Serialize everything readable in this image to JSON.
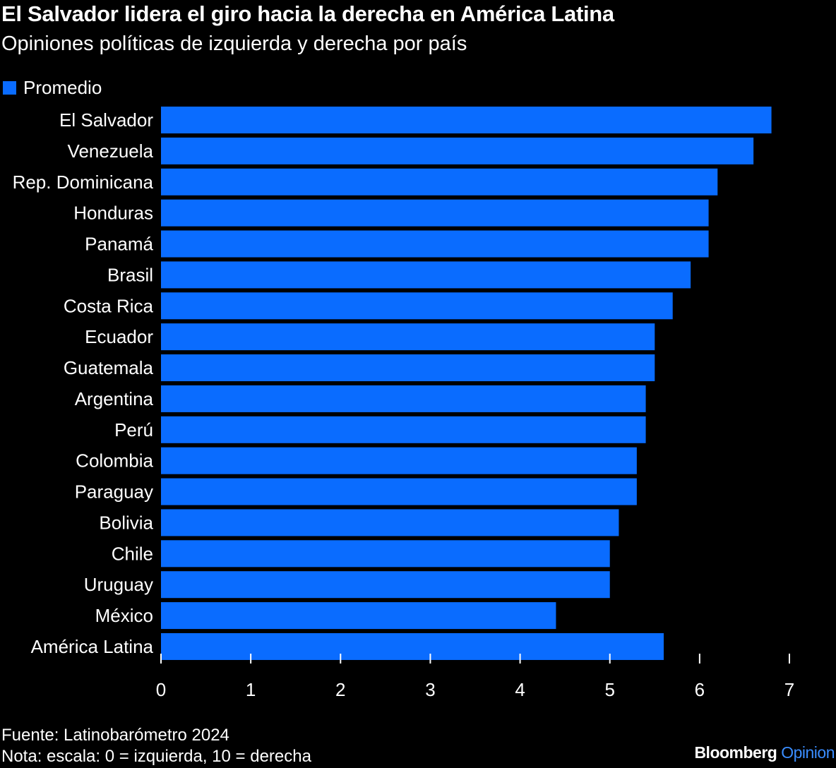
{
  "title": "El Salvador lidera el giro hacia la derecha en América Latina",
  "subtitle": "Opiniones políticas de izquierda y derecha por país",
  "footer": {
    "source": "Fuente: Latinobarómetro 2024",
    "note": "Nota: escala: 0 = izquierda, 10 = derecha",
    "logo_brand": "Bloomberg",
    "logo_section": "Opinion"
  },
  "colors": {
    "bar": "#0a6cff",
    "background": "#000000",
    "text": "#ffffff"
  },
  "chart_data": {
    "type": "bar",
    "orientation": "horizontal",
    "title": "El Salvador lidera el giro hacia la derecha en América Latina",
    "subtitle": "Opiniones políticas de izquierda y derecha por país",
    "legend": {
      "position": "top-left",
      "entries": [
        "Promedio"
      ]
    },
    "categories": [
      "El Salvador",
      "Venezuela",
      "Rep. Dominicana",
      "Honduras",
      "Panamá",
      "Brasil",
      "Costa Rica",
      "Ecuador",
      "Guatemala",
      "Argentina",
      "Perú",
      "Colombia",
      "Paraguay",
      "Bolivia",
      "Chile",
      "Uruguay",
      "México",
      "América Latina"
    ],
    "series": [
      {
        "name": "Promedio",
        "values": [
          6.8,
          6.6,
          6.2,
          6.1,
          6.1,
          5.9,
          5.7,
          5.5,
          5.5,
          5.4,
          5.4,
          5.3,
          5.3,
          5.1,
          5.0,
          5.0,
          4.4,
          5.6
        ]
      }
    ],
    "xlim": [
      0,
      7
    ],
    "xticks": [
      "0",
      "1",
      "2",
      "3",
      "4",
      "5",
      "6",
      "7"
    ],
    "grid": false
  }
}
